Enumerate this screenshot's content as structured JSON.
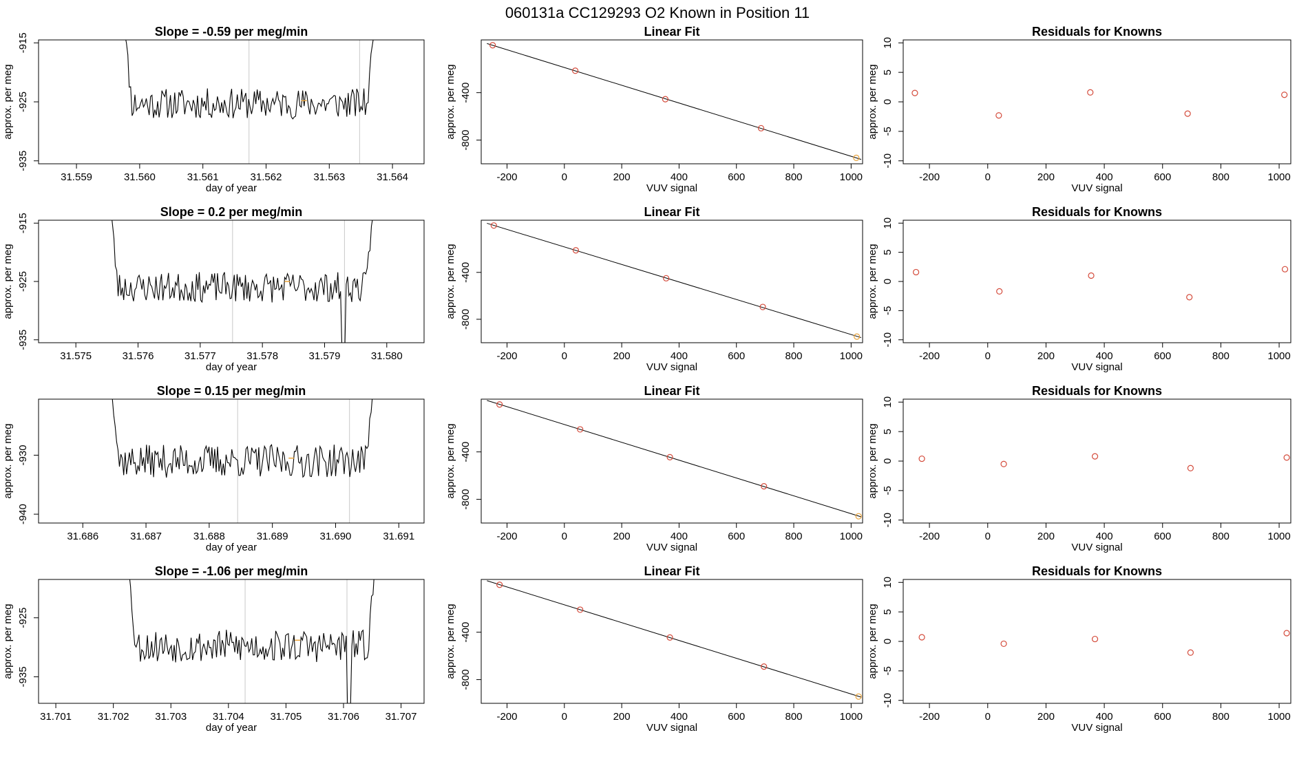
{
  "figure": {
    "title": "060131a      CC129293   O2 Known in Position  11"
  },
  "colors": {
    "line": "#000000",
    "fit_points": "#d44a3a",
    "last_fit_point": "#e8a23a",
    "residual_points": "#d44a3a",
    "vertical_markers": "#c8c8c8",
    "orange_marker": "#e8a23a"
  },
  "chart_data": [
    {
      "type": "line",
      "row": 1,
      "kind": "timeseries",
      "title": "Slope =  -0.59  per meg/min",
      "xlabel": "day of year",
      "ylabel": "approx. per meg",
      "xlim": [
        31.5584,
        31.5645
      ],
      "ylim": [
        -935.5,
        -914.5
      ],
      "xticks": [
        "31.559",
        "31.560",
        "31.561",
        "31.562",
        "31.563",
        "31.564"
      ],
      "yticks": [
        "-915",
        "-925",
        "-935"
      ],
      "x_start": 31.5597,
      "x_step": 2.25e-05,
      "seed": 11,
      "base_level": -925.3,
      "noise": 2.6,
      "y_start": -905,
      "y_end": -905,
      "vlines": [
        31.56173,
        31.56348
      ],
      "orange_mark": {
        "x": 31.5626,
        "y": -924.8
      }
    },
    {
      "type": "line",
      "row": 2,
      "kind": "timeseries",
      "title": "Slope =  0.2  per meg/min",
      "xlabel": "day of year",
      "ylabel": "approx. per meg",
      "xlim": [
        31.5744,
        31.5806
      ],
      "ylim": [
        -935.5,
        -914.5
      ],
      "xticks": [
        "31.575",
        "31.576",
        "31.577",
        "31.578",
        "31.579",
        "31.580"
      ],
      "yticks": [
        "-915",
        "-925",
        "-935"
      ],
      "x_start": 31.5755,
      "x_step": 2.25e-05,
      "seed": 23,
      "base_level": -926.0,
      "noise": 2.6,
      "y_start": -905,
      "y_end": -905,
      "dip": {
        "x": 31.5793,
        "y": -937
      },
      "vlines": [
        31.57752,
        31.57932
      ],
      "orange_mark": {
        "x": 31.5784,
        "y": -925
      }
    },
    {
      "type": "line",
      "row": 3,
      "kind": "timeseries",
      "title": "Slope =  0.15  per meg/min",
      "xlabel": "day of year",
      "ylabel": "approx. per meg",
      "xlim": [
        31.6853,
        31.6914
      ],
      "ylim": [
        -941.5,
        -920.5
      ],
      "xticks": [
        "31.686",
        "31.687",
        "31.688",
        "31.689",
        "31.690",
        "31.691"
      ],
      "yticks": [
        "-930",
        "-940"
      ],
      "x_start": 31.6864,
      "x_step": 2.25e-05,
      "seed": 37,
      "base_level": -931.0,
      "noise": 2.8,
      "y_start": -912,
      "y_end": -912,
      "vlines": [
        31.68845,
        31.69022
      ],
      "orange_mark": {
        "x": 31.6893,
        "y": -930.5
      }
    },
    {
      "type": "line",
      "row": 4,
      "kind": "timeseries",
      "title": "Slope =  -1.06  per meg/min",
      "xlabel": "day of year",
      "ylabel": "approx. per meg",
      "xlim": [
        31.7007,
        31.7074
      ],
      "ylim": [
        -939.5,
        -918.5
      ],
      "xticks": [
        "31.701",
        "31.702",
        "31.703",
        "31.704",
        "31.705",
        "31.706",
        "31.707"
      ],
      "yticks": [
        "-925",
        "-935"
      ],
      "x_start": 31.7022,
      "x_step": 2.45e-05,
      "seed": 53,
      "base_level": -929.8,
      "noise": 2.8,
      "y_start": -910,
      "y_end": -910,
      "dip": {
        "x": 31.7061,
        "y": -941
      },
      "vlines": [
        31.70429,
        31.70606
      ],
      "orange_mark": {
        "x": 31.7052,
        "y": -928.8
      }
    },
    {
      "type": "scatter",
      "row": 1,
      "kind": "fit",
      "title": "Linear Fit",
      "xlabel": "VUV signal",
      "ylabel": "approx. per meg",
      "xlim": [
        -290,
        1040
      ],
      "ylim": [
        -1000,
        45
      ],
      "xticks": [
        "-200",
        "0",
        "200",
        "400",
        "600",
        "800",
        "1000"
      ],
      "yticks": [
        "-400",
        "-800"
      ],
      "x": [
        -250,
        38,
        352,
        686,
        1018
      ],
      "y": [
        0,
        -215,
        -455,
        -700,
        -950
      ]
    },
    {
      "type": "scatter",
      "row": 2,
      "kind": "fit",
      "title": "Linear Fit",
      "xlabel": "VUV signal",
      "ylabel": "approx. per meg",
      "xlim": [
        -290,
        1040
      ],
      "ylim": [
        -1000,
        45
      ],
      "xticks": [
        "-200",
        "0",
        "200",
        "400",
        "600",
        "800",
        "1000"
      ],
      "yticks": [
        "-400",
        "-800"
      ],
      "x": [
        -246,
        40,
        355,
        692,
        1020
      ],
      "y": [
        0,
        -212,
        -450,
        -695,
        -948
      ]
    },
    {
      "type": "scatter",
      "row": 3,
      "kind": "fit",
      "title": "Linear Fit",
      "xlabel": "VUV signal",
      "ylabel": "approx. per meg",
      "xlim": [
        -290,
        1040
      ],
      "ylim": [
        -1000,
        45
      ],
      "xticks": [
        "-200",
        "0",
        "200",
        "400",
        "600",
        "800",
        "1000"
      ],
      "yticks": [
        "-400",
        "-800"
      ],
      "x": [
        -226,
        55,
        368,
        696,
        1026
      ],
      "y": [
        0,
        -210,
        -445,
        -690,
        -943
      ]
    },
    {
      "type": "scatter",
      "row": 4,
      "kind": "fit",
      "title": "Linear Fit",
      "xlabel": "VUV signal",
      "ylabel": "approx. per meg",
      "xlim": [
        -290,
        1040
      ],
      "ylim": [
        -1000,
        45
      ],
      "xticks": [
        "-200",
        "0",
        "200",
        "400",
        "600",
        "800",
        "1000"
      ],
      "yticks": [
        "-400",
        "-800"
      ],
      "x": [
        -226,
        55,
        368,
        696,
        1026
      ],
      "y": [
        0,
        -210,
        -445,
        -690,
        -943
      ]
    },
    {
      "type": "scatter",
      "row": 1,
      "kind": "residual",
      "title": "Residuals for Knowns",
      "xlabel": "VUV signal",
      "ylabel": "approx. per meg",
      "xlim": [
        -290,
        1040
      ],
      "ylim": [
        -10.5,
        10.5
      ],
      "xticks": [
        "-200",
        "0",
        "200",
        "400",
        "600",
        "800",
        "1000"
      ],
      "yticks": [
        "-10",
        "-5",
        "0",
        "5",
        "10"
      ],
      "x": [
        -250,
        38,
        352,
        686,
        1018
      ],
      "y": [
        1.5,
        -2.3,
        1.6,
        -2.0,
        1.2
      ]
    },
    {
      "type": "scatter",
      "row": 2,
      "kind": "residual",
      "title": "Residuals for Knowns",
      "xlabel": "VUV signal",
      "ylabel": "approx. per meg",
      "xlim": [
        -290,
        1040
      ],
      "ylim": [
        -10.5,
        10.5
      ],
      "xticks": [
        "-200",
        "0",
        "200",
        "400",
        "600",
        "800",
        "1000"
      ],
      "yticks": [
        "-10",
        "-5",
        "0",
        "5",
        "10"
      ],
      "x": [
        -246,
        40,
        355,
        692,
        1020
      ],
      "y": [
        1.6,
        -1.7,
        1.0,
        -2.7,
        2.1
      ]
    },
    {
      "type": "scatter",
      "row": 3,
      "kind": "residual",
      "title": "Residuals for Knowns",
      "xlabel": "VUV signal",
      "ylabel": "approx. per meg",
      "xlim": [
        -290,
        1040
      ],
      "ylim": [
        -10.5,
        10.5
      ],
      "xticks": [
        "-200",
        "0",
        "200",
        "400",
        "600",
        "800",
        "1000"
      ],
      "yticks": [
        "-10",
        "-5",
        "0",
        "5",
        "10"
      ],
      "x": [
        -226,
        55,
        368,
        696,
        1026
      ],
      "y": [
        0.4,
        -0.5,
        0.8,
        -1.2,
        0.6
      ]
    },
    {
      "type": "scatter",
      "row": 4,
      "kind": "residual",
      "title": "Residuals for Knowns",
      "xlabel": "VUV signal",
      "ylabel": "approx. per meg",
      "xlim": [
        -290,
        1040
      ],
      "ylim": [
        -10.5,
        10.5
      ],
      "xticks": [
        "-200",
        "0",
        "200",
        "400",
        "600",
        "800",
        "1000"
      ],
      "yticks": [
        "-10",
        "-5",
        "0",
        "5",
        "10"
      ],
      "x": [
        -226,
        55,
        368,
        696,
        1026
      ],
      "y": [
        0.7,
        -0.4,
        0.4,
        -1.9,
        1.4
      ]
    }
  ]
}
